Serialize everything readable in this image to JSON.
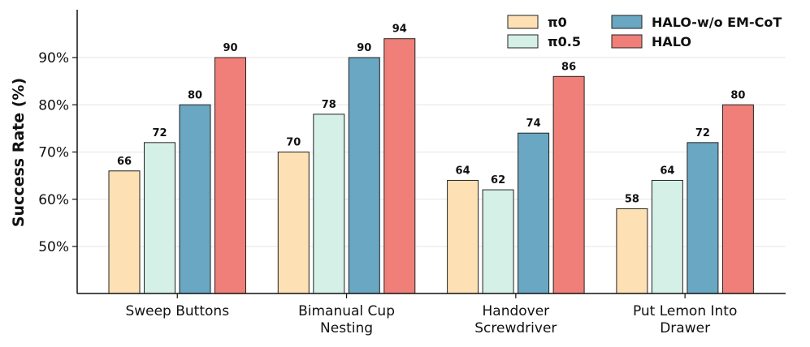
{
  "chart_data": {
    "type": "bar",
    "title": "",
    "xlabel": "",
    "ylabel": "Success Rate (%)",
    "ylim": [
      40,
      100
    ],
    "yticks": [
      50,
      60,
      70,
      80,
      90
    ],
    "ytick_labels": [
      "50%",
      "60%",
      "70%",
      "80%",
      "90%"
    ],
    "grid": "horizontal",
    "legend_position": "top-right",
    "categories": [
      [
        "Sweep Buttons"
      ],
      [
        "Bimanual Cup",
        "Nesting"
      ],
      [
        "Handover",
        "Screwdriver"
      ],
      [
        "Put Lemon Into",
        "Drawer"
      ]
    ],
    "series": [
      {
        "name": "π0",
        "color": "#fde0b4",
        "values": [
          66,
          70,
          64,
          58
        ]
      },
      {
        "name": "π0.5",
        "color": "#d5f0e6",
        "values": [
          72,
          78,
          62,
          64
        ]
      },
      {
        "name": "HALO-w/o EM-CoT",
        "color": "#69a7c2",
        "values": [
          80,
          90,
          74,
          72
        ]
      },
      {
        "name": "HALO",
        "color": "#ef7f78",
        "values": [
          90,
          94,
          86,
          80
        ]
      }
    ]
  }
}
